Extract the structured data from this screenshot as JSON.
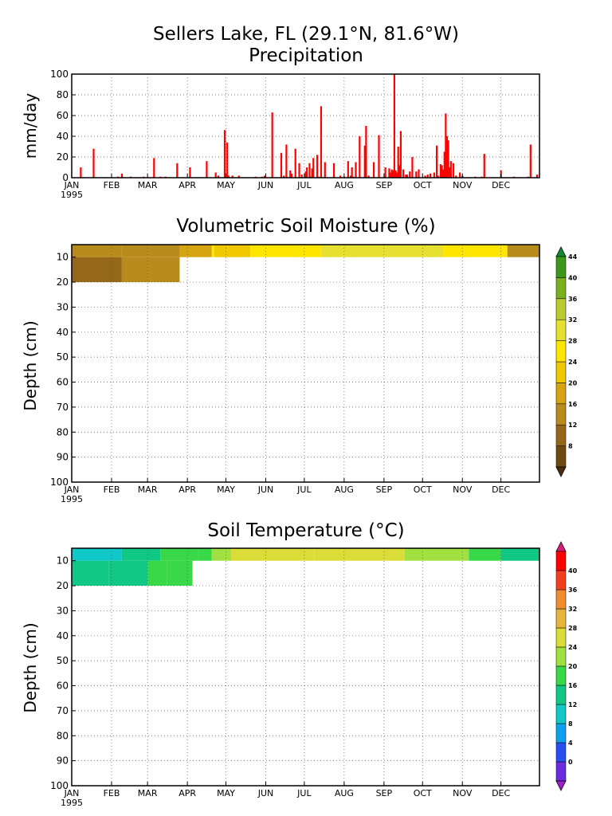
{
  "figure": {
    "title_line1": "Sellers Lake, FL (29.1°N, 81.6°W)",
    "title_line2": "Precipitation"
  },
  "axes": {
    "months": [
      "JAN",
      "FEB",
      "MAR",
      "APR",
      "MAY",
      "JUN",
      "JUL",
      "AUG",
      "SEP",
      "OCT",
      "NOV",
      "DEC"
    ],
    "year": "1995",
    "depth_ticks": [
      "10",
      "20",
      "30",
      "40",
      "50",
      "60",
      "70",
      "80",
      "90",
      "100"
    ]
  },
  "chart_data": [
    {
      "type": "bar",
      "title": "Precipitation",
      "xlabel": "",
      "ylabel": "mm/day",
      "xlim": [
        1,
        365
      ],
      "ylim": [
        0,
        100
      ],
      "yticks": [
        "0",
        "20",
        "40",
        "60",
        "80",
        "100"
      ],
      "grid": true,
      "color": "#ff0000",
      "x": [
        8,
        18,
        37,
        40,
        47,
        57,
        65,
        70,
        74,
        83,
        93,
        106,
        113,
        115,
        120,
        122,
        123,
        126,
        131,
        144,
        149,
        151,
        157,
        164,
        166,
        168,
        171,
        172,
        175,
        178,
        180,
        183,
        184,
        186,
        187,
        188,
        189,
        192,
        193,
        195,
        198,
        205,
        210,
        213,
        216,
        218,
        219,
        220,
        222,
        225,
        229,
        230,
        232,
        236,
        240,
        245,
        248,
        249,
        250,
        251,
        252,
        253,
        254,
        255,
        256,
        257,
        259,
        261,
        262,
        264,
        266,
        269,
        271,
        276,
        278,
        280,
        283,
        285,
        286,
        288,
        289,
        290,
        291,
        292,
        293,
        294,
        295,
        296,
        298,
        300,
        303,
        305,
        315,
        320,
        322,
        335,
        345,
        356,
        358,
        363
      ],
      "values": [
        10,
        28,
        1,
        4,
        1,
        1,
        19,
        1,
        1,
        14,
        10,
        16,
        5,
        2,
        46,
        34,
        2,
        2,
        2,
        1,
        1,
        2,
        63,
        24,
        2,
        32,
        7,
        4,
        28,
        14,
        3,
        6,
        10,
        14,
        1,
        9,
        19,
        22,
        1,
        69,
        15,
        14,
        2,
        1,
        16,
        2,
        10,
        1,
        15,
        40,
        31,
        50,
        2,
        15,
        41,
        10,
        9,
        5,
        8,
        7,
        100,
        7,
        5,
        30,
        12,
        45,
        8,
        3,
        3,
        6,
        20,
        6,
        8,
        2,
        3,
        4,
        5,
        31,
        2,
        13,
        12,
        8,
        25,
        62,
        40,
        36,
        10,
        16,
        14,
        2,
        5,
        2,
        1,
        1,
        23,
        7,
        1,
        1,
        32,
        3
      ],
      "month_labels": [
        "JAN",
        "FEB",
        "MAR",
        "APR",
        "MAY",
        "JUN",
        "JUL",
        "AUG",
        "SEP",
        "OCT",
        "NOV",
        "DEC"
      ]
    },
    {
      "type": "heatmap",
      "title": "Volumetric Soil Moisture (%)",
      "xlabel": "",
      "ylabel": "Depth (cm)",
      "xlim": [
        1,
        365
      ],
      "ylim": [
        100,
        5
      ],
      "grid": true,
      "colorbar_ticks": [
        "8",
        "12",
        "16",
        "20",
        "24",
        "28",
        "32",
        "36",
        "40",
        "44"
      ],
      "colorbar_colors": [
        "#4a2e0c",
        "#6e4a12",
        "#946818",
        "#b88c1c",
        "#d6a410",
        "#f0c800",
        "#ffe600",
        "#e6e030",
        "#b8cc30",
        "#7ab020",
        "#3c961a",
        "#108a30"
      ],
      "bands": [
        {
          "depth_top": 5,
          "depth_bottom": 10,
          "segments": [
            {
              "from": 1,
              "to": 40,
              "value": 17
            },
            {
              "from": 40,
              "to": 85,
              "value": 18
            },
            {
              "from": 85,
              "to": 110,
              "value": 22
            },
            {
              "from": 110,
              "to": 112,
              "value": 28
            },
            {
              "from": 112,
              "to": 140,
              "value": 25
            },
            {
              "from": 140,
              "to": 195,
              "value": 30
            },
            {
              "from": 195,
              "to": 290,
              "value": 32
            },
            {
              "from": 290,
              "to": 340,
              "value": 29
            },
            {
              "from": 340,
              "to": 365,
              "value": 19
            }
          ]
        },
        {
          "depth_top": 10,
          "depth_bottom": 20,
          "segments": [
            {
              "from": 1,
              "to": 40,
              "value": 15
            },
            {
              "from": 40,
              "to": 85,
              "value": 18
            }
          ]
        }
      ],
      "color_scale_stops": [
        8,
        12,
        16,
        20,
        24,
        28,
        32,
        36,
        40,
        44
      ]
    },
    {
      "type": "heatmap",
      "title": "Soil Temperature (°C)",
      "xlabel": "",
      "ylabel": "Depth (cm)",
      "xlim": [
        1,
        365
      ],
      "ylim": [
        100,
        5
      ],
      "grid": true,
      "colorbar_ticks": [
        "0",
        "4",
        "8",
        "12",
        "16",
        "20",
        "24",
        "28",
        "32",
        "36",
        "40"
      ],
      "colorbar_colors": [
        "#a020c8",
        "#6a2cdc",
        "#2850f0",
        "#10a0f0",
        "#10c8c8",
        "#10c884",
        "#38d848",
        "#a0e040",
        "#dcdc38",
        "#e6b43c",
        "#f08c30",
        "#f04020",
        "#ff0000",
        "#d81e78"
      ],
      "bands": [
        {
          "depth_top": 5,
          "depth_bottom": 10,
          "segments": [
            {
              "from": 1,
              "to": 40,
              "value": 15
            },
            {
              "from": 40,
              "to": 70,
              "value": 17
            },
            {
              "from": 70,
              "to": 100,
              "value": 20
            },
            {
              "from": 100,
              "to": 110,
              "value": 22
            },
            {
              "from": 110,
              "to": 125,
              "value": 26
            },
            {
              "from": 125,
              "to": 190,
              "value": 28
            },
            {
              "from": 190,
              "to": 260,
              "value": 29
            },
            {
              "from": 260,
              "to": 310,
              "value": 27
            },
            {
              "from": 310,
              "to": 335,
              "value": 22
            },
            {
              "from": 335,
              "to": 365,
              "value": 16
            }
          ]
        },
        {
          "depth_top": 10,
          "depth_bottom": 20,
          "segments": [
            {
              "from": 1,
              "to": 30,
              "value": 16
            },
            {
              "from": 30,
              "to": 60,
              "value": 17
            },
            {
              "from": 60,
              "to": 75,
              "value": 20
            },
            {
              "from": 75,
              "to": 95,
              "value": 22
            }
          ]
        }
      ],
      "color_scale_stops": [
        0,
        4,
        8,
        12,
        16,
        20,
        24,
        28,
        32,
        36,
        40
      ]
    }
  ]
}
